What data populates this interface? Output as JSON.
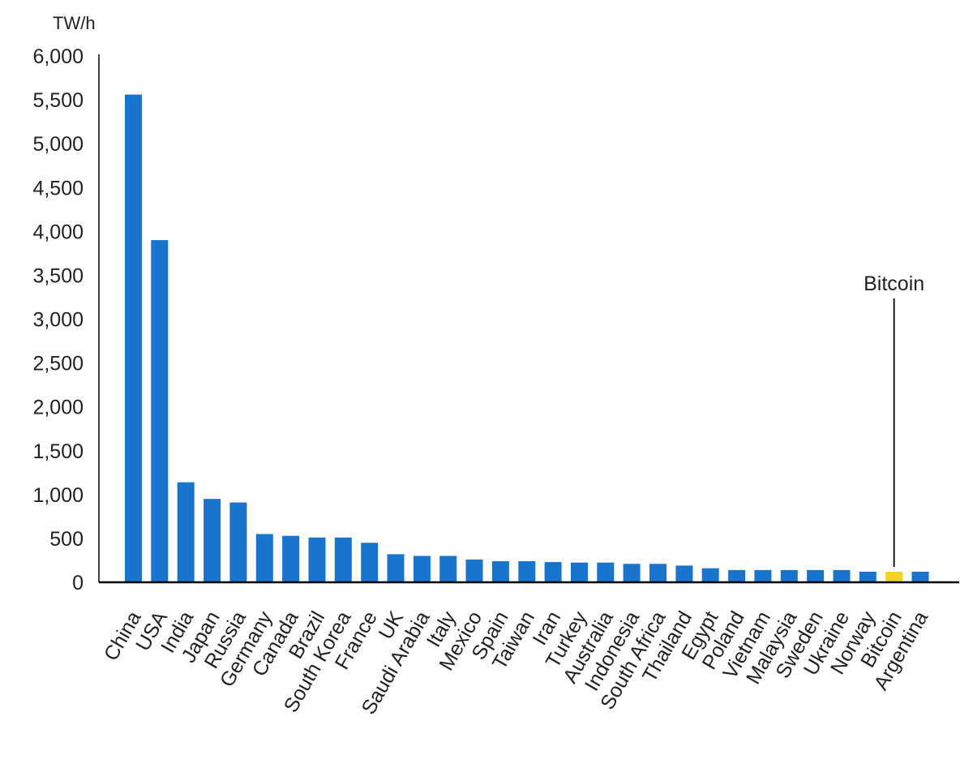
{
  "chart_data": {
    "type": "bar",
    "ylabel": "TW/h",
    "ylim": [
      0,
      6000
    ],
    "yticks": [
      0,
      500,
      1000,
      1500,
      2000,
      2500,
      3000,
      3500,
      4000,
      4500,
      5000,
      5500,
      6000
    ],
    "ytick_labels": [
      "0",
      "500",
      "1,000",
      "1,500",
      "2,000",
      "2,500",
      "3,000",
      "3,500",
      "4,000",
      "4,500",
      "5,000",
      "5,500",
      "6,000"
    ],
    "grid": false,
    "categories": [
      "China",
      "USA",
      "India",
      "Japan",
      "Russia",
      "Germany",
      "Canada",
      "Brazil",
      "South Korea",
      "France",
      "UK",
      "Saudi Arabia",
      "Italy",
      "Mexico",
      "Spain",
      "Taiwan",
      "Iran",
      "Turkey",
      "Australia",
      "Indonesia",
      "South Africa",
      "Thailand",
      "Egypt",
      "Poland",
      "Vietnam",
      "Malaysia",
      "Sweden",
      "Ukraine",
      "Norway",
      "Bitcoin",
      "Argentina"
    ],
    "values": [
      5560,
      3900,
      1140,
      950,
      910,
      550,
      530,
      510,
      510,
      450,
      320,
      300,
      300,
      260,
      240,
      240,
      230,
      225,
      225,
      210,
      210,
      190,
      160,
      140,
      140,
      140,
      140,
      140,
      120,
      120,
      120
    ],
    "highlight_category": "Bitcoin",
    "annotation": "Bitcoin",
    "colors": {
      "bar": "#1874CD",
      "highlight": "#F5D322",
      "axis": "#000000",
      "text": "#222222"
    }
  }
}
